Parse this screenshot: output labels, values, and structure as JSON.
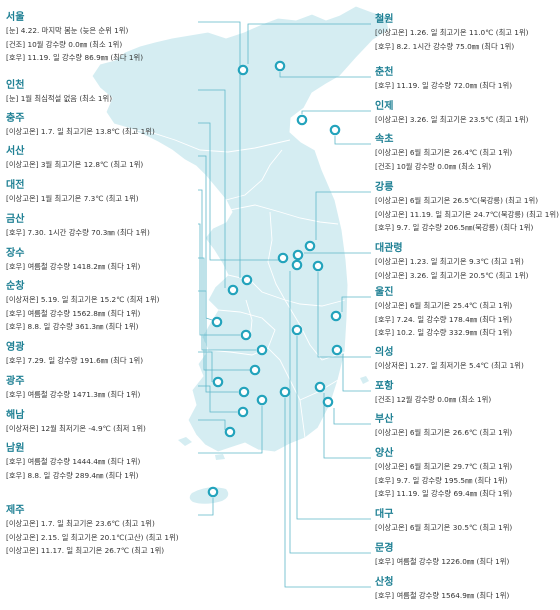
{
  "colors": {
    "title": "#1d7f93",
    "land": "#d5edf2",
    "land_stroke": "#ffffff",
    "leader": "#5fb7c9",
    "marker": "#23a3bc",
    "text": "#333333"
  },
  "left_regions": [
    {
      "id": "seoul",
      "name": "서울",
      "records": [
        "[눈] 4.22. 마지막 봄눈 (늦은 순위 1위)",
        "[건조] 10월 강수량 0.0㎜ (최소 1위)",
        "[호우] 11.19. 일 강수량 86.9㎜ (최다 1위)"
      ]
    },
    {
      "id": "incheon",
      "name": "인천",
      "records": [
        "[눈] 1월 최심적설 없음 (최소 1위)"
      ]
    },
    {
      "id": "chungju",
      "name": "충주",
      "records": [
        "[이상고온] 1.7. 일 최고기온 13.8℃ (최고 1위)"
      ]
    },
    {
      "id": "seosan",
      "name": "서산",
      "records": [
        "[이상고온] 3월 최고기온 12.8℃ (최고 1위)"
      ]
    },
    {
      "id": "daejeon",
      "name": "대전",
      "records": [
        "[이상고온] 1월 최고기온 7.3℃ (최고 1위)"
      ]
    },
    {
      "id": "geumsan",
      "name": "금산",
      "records": [
        "[호우] 7.30. 1시간 강수량 70.3㎜ (최다 1위)"
      ]
    },
    {
      "id": "jangsu",
      "name": "장수",
      "records": [
        "[호우] 여름철 강수량 1418.2㎜ (최다 1위)"
      ]
    },
    {
      "id": "suncheon",
      "name": "순창",
      "records": [
        "[이상저온] 5.19. 일 최고기온 15.2℃ (최저 1위)",
        "[호우] 여름철 강수량 1562.8㎜ (최다 1위)",
        "[호우] 8.8. 일 강수량 361.3㎜ (최다 1위)"
      ]
    },
    {
      "id": "yeonggwang",
      "name": "영광",
      "records": [
        "[호우] 7.29. 일 강수량 191.6㎜ (최다 1위)"
      ]
    },
    {
      "id": "gwangju",
      "name": "광주",
      "records": [
        "[호우] 여름철 강수량 1471.3㎜ (최다 1위)"
      ]
    },
    {
      "id": "haenam",
      "name": "해남",
      "records": [
        "[이상저온] 12월 최저기온 -4.9℃ (최저 1위)"
      ]
    },
    {
      "id": "namwon",
      "name": "남원",
      "records": [
        "[호우] 여름철 강수량 1444.4㎜ (최다 1위)",
        "[호우] 8.8. 일 강수량 289.4㎜ (최다 1위)"
      ]
    },
    {
      "id": "jeju",
      "name": "제주",
      "records": [
        "[이상고온] 1.7. 일 최고기온 23.6℃ (최고 1위)",
        "[이상고온] 2.15. 일 최고기온 20.1℃(고산) (최고 1위)",
        "[이상고온] 11.17. 일 최고기온 26.7℃ (최고 1위)"
      ]
    }
  ],
  "right_regions": [
    {
      "id": "cheorwon",
      "name": "철원",
      "records": [
        "[이상고온] 1.26. 일 최고기온 11.0℃ (최고 1위)",
        "[호우] 8.2. 1시간 강수량 75.0㎜ (최다 1위)"
      ]
    },
    {
      "id": "chuncheon",
      "name": "춘천",
      "records": [
        "[호우] 11.19. 일 강수량 72.0㎜ (최다 1위)"
      ]
    },
    {
      "id": "inje",
      "name": "인제",
      "records": [
        "[이상고온] 3.26. 일 최고기온 23.5℃ (최고 1위)"
      ]
    },
    {
      "id": "sokcho",
      "name": "속초",
      "records": [
        "[이상고온] 6월 최고기온 26.4℃ (최고 1위)",
        "[건조] 10월 강수량 0.0㎜ (최소 1위)"
      ]
    },
    {
      "id": "gangneung",
      "name": "강릉",
      "records": [
        "[이상고온] 6월 최고기온 26.5℃(북강릉) (최고 1위)",
        "[이상고온] 11.19. 일 최고기온 24.7℃(북강릉) (최고 1위)",
        "[호우] 9.7. 일 강수량 206.5㎜(북강릉) (최다 1위)"
      ]
    },
    {
      "id": "daegwallyeong",
      "name": "대관령",
      "records": [
        "[이상고온] 1.23. 일 최고기온 9.3℃ (최고 1위)",
        "[이상고온] 3.26. 일 최고기온 20.5℃ (최고 1위)"
      ]
    },
    {
      "id": "uljin",
      "name": "울진",
      "records": [
        "[이상고온] 6월 최고기온 25.4℃ (최고 1위)",
        "[호우] 7.24. 일 강수량 178.4㎜ (최다 1위)",
        "[호우] 10.2. 일 강수량 332.9㎜ (최다 1위)"
      ]
    },
    {
      "id": "uiseong",
      "name": "의성",
      "records": [
        "[이상저온] 1.27. 일 최저기온 5.4℃ (최고 1위)"
      ]
    },
    {
      "id": "pohang",
      "name": "포항",
      "records": [
        "[건조] 12월 강수량 0.0㎜ (최소 1위)"
      ]
    },
    {
      "id": "busan",
      "name": "부산",
      "records": [
        "[이상고온] 6월 최고기온 26.6℃ (최고 1위)"
      ]
    },
    {
      "id": "yangsan",
      "name": "양산",
      "records": [
        "[이상고온] 6월 최고기온 29.7℃ (최고 1위)",
        "[호우] 9.7. 일 강수량 195.5㎜ (최다 1위)",
        "[호우] 11.19. 일 강수량 69.4㎜ (최다 1위)"
      ]
    },
    {
      "id": "daegu",
      "name": "대구",
      "records": [
        "[이상고온] 6월 최고기온 30.5℃ (최고 1위)"
      ]
    },
    {
      "id": "mungyeong",
      "name": "문경",
      "records": [
        "[호우] 여름철 강수량 1226.0㎜ (최다 1위)"
      ]
    },
    {
      "id": "sancheong",
      "name": "산청",
      "records": [
        "[호우] 여름철 강수량 1564.9㎜ (최다 1위)"
      ]
    }
  ]
}
